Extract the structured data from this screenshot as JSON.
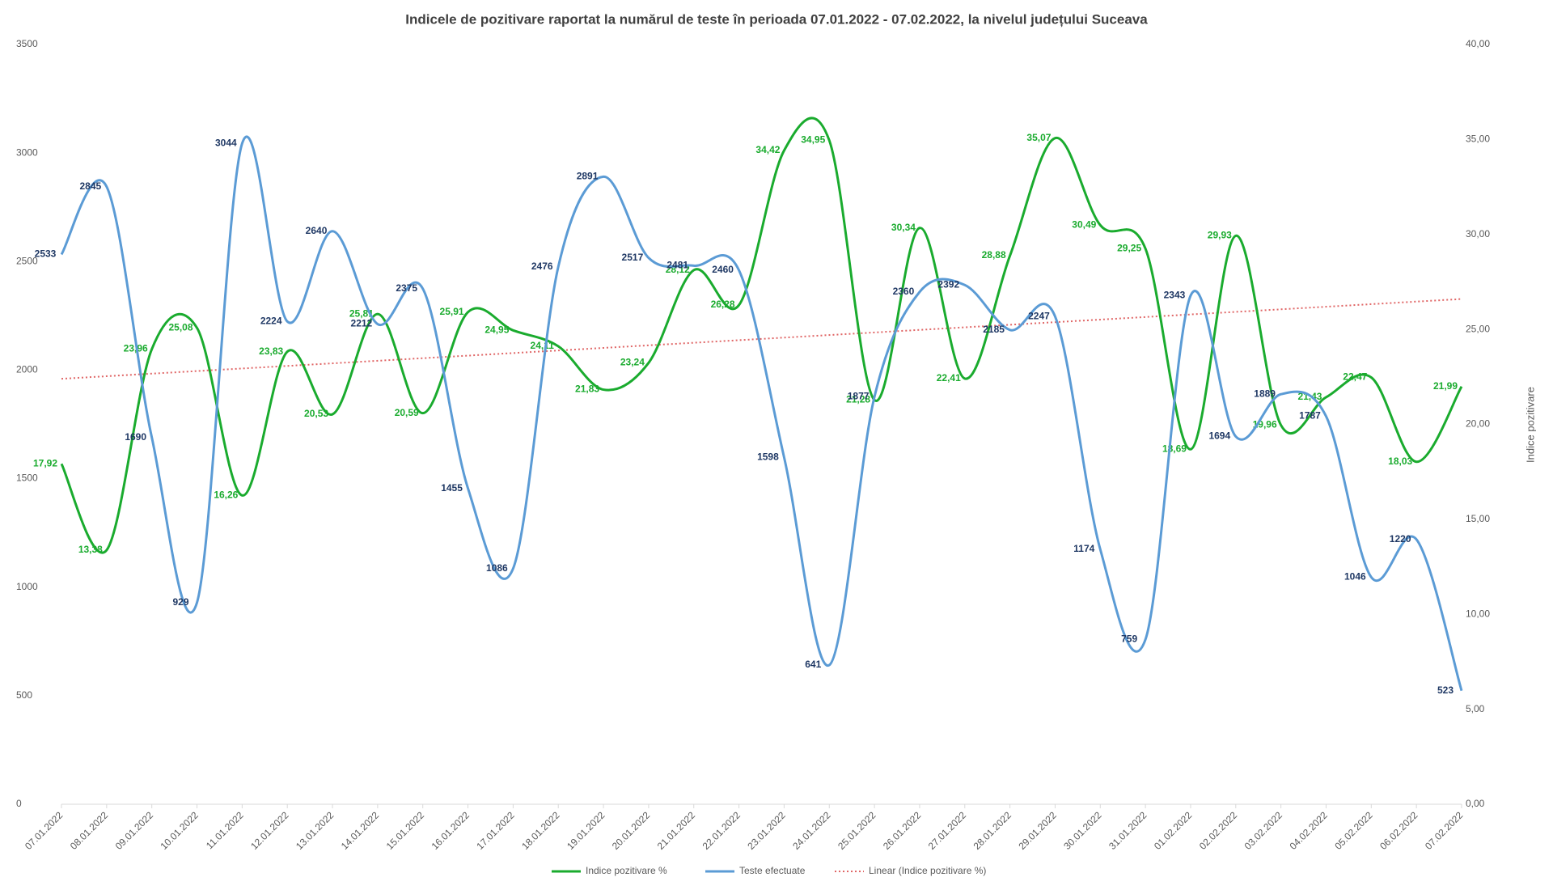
{
  "chart_data": {
    "type": "line",
    "title": "Indicele de pozitivare  raportat  la numărul  de teste în perioada  07.01.2022 - 07.02.2022, la nivelul județului  Suceava",
    "y2_label": "Indice pozitivare",
    "categories": [
      "07.01.2022",
      "08.01.2022",
      "09.01.2022",
      "10.01.2022",
      "11.01.2022",
      "12.01.2022",
      "13.01.2022",
      "14.01.2022",
      "15.01.2022",
      "16.01.2022",
      "17.01.2022",
      "18.01.2022",
      "19.01.2022",
      "20.01.2022",
      "21.01.2022",
      "22.01.2022",
      "23.01.2022",
      "24.01.2022",
      "25.01.2022",
      "26.01.2022",
      "27.01.2022",
      "28.01.2022",
      "29.01.2022",
      "30.01.2022",
      "31.01.2022",
      "01.02.2022",
      "02.02.2022",
      "03.02.2022",
      "04.02.2022",
      "05.02.2022",
      "06.02.2022",
      "07.02.2022"
    ],
    "series": [
      {
        "name": "Indice pozitivare %",
        "color": "#1aab2e",
        "axis": "y2",
        "values": [
          17.92,
          13.38,
          23.96,
          25.08,
          16.26,
          23.83,
          20.53,
          25.81,
          20.59,
          25.91,
          24.95,
          24.11,
          21.83,
          23.24,
          28.12,
          26.28,
          34.42,
          34.95,
          21.28,
          30.34,
          22.41,
          28.88,
          35.07,
          30.49,
          29.25,
          18.69,
          29.93,
          19.96,
          21.43,
          22.47,
          18.03,
          21.99
        ],
        "value_labels": [
          "17,92",
          "13,38",
          "23,96",
          "25,08",
          "16,26",
          "23,83",
          "20,53",
          "25,81",
          "20,59",
          "25,91",
          "24,95",
          "24,11",
          "21,83",
          "23,24",
          "28,12",
          "26,28",
          "34,42",
          "34,95",
          "21,28",
          "30,34",
          "22,41",
          "28,88",
          "35,07",
          "30,49",
          "29,25",
          "18,69",
          "29,93",
          "19,96",
          "21,43",
          "22,47",
          "18,03",
          "21,99"
        ]
      },
      {
        "name": "Teste efectuate",
        "color": "#5b9bd5",
        "axis": "y",
        "values": [
          2533,
          2845,
          1690,
          929,
          3044,
          2224,
          2640,
          2212,
          2375,
          1455,
          1086,
          2476,
          2891,
          2517,
          2481,
          2460,
          1598,
          641,
          1877,
          2360,
          2392,
          2185,
          2247,
          1174,
          759,
          2343,
          1694,
          1889,
          1787,
          1046,
          1220,
          523
        ]
      }
    ],
    "trend": {
      "name": "Linear (Indice pozitivare %)",
      "color": "#e06666",
      "axis": "y2",
      "start": 22.4,
      "end": 26.6
    },
    "ylim": [
      0,
      3500
    ],
    "yticks": [
      0,
      500,
      1000,
      1500,
      2000,
      2500,
      3000,
      3500
    ],
    "y2lim": [
      0,
      40
    ],
    "y2ticks": [
      {
        "value": 0,
        "label": "0,00"
      },
      {
        "value": 5,
        "label": "5,00"
      },
      {
        "value": 10,
        "label": "10,00"
      },
      {
        "value": 15,
        "label": "15,00"
      },
      {
        "value": 20,
        "label": "20,00"
      },
      {
        "value": 25,
        "label": "25,00"
      },
      {
        "value": 30,
        "label": "30,00"
      },
      {
        "value": 35,
        "label": "35,00"
      },
      {
        "value": 40,
        "label": "40,00"
      }
    ],
    "legend": "bottom"
  }
}
